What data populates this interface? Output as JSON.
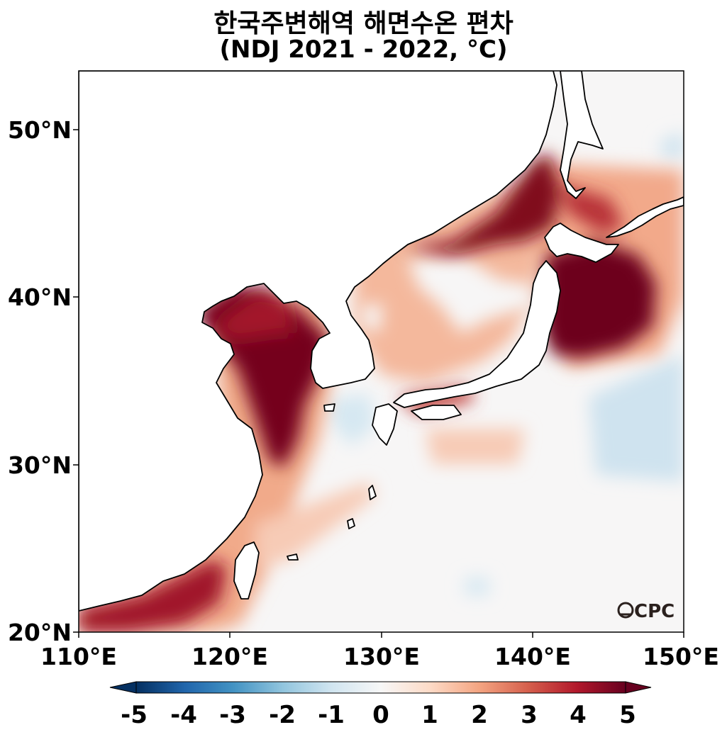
{
  "title": {
    "line1": "한국주변해역 해면수온 편차",
    "line2": "(NDJ 2021 - 2022, °C)"
  },
  "map": {
    "lon_range": [
      110,
      150
    ],
    "lat_range": [
      20,
      53.5
    ],
    "x_ticks": [
      "110°E",
      "120°E",
      "130°E",
      "140°E",
      "150°E"
    ],
    "y_ticks": [
      "50°N",
      "40°N",
      "30°N",
      "20°N"
    ],
    "logo": "OCPC"
  },
  "colorbar": {
    "labels": [
      "-5",
      "-4",
      "-3",
      "-2",
      "-1",
      "0",
      "1",
      "2",
      "3",
      "4",
      "5"
    ],
    "colormap": "RdBu_r",
    "range": [
      -5,
      5
    ],
    "extend": "both"
  },
  "colors": {
    "strong_warm": "#67001f",
    "warm": "#b2182b",
    "mid_warm": "#d6604d",
    "light_warm": "#f4a582",
    "pale_warm": "#fddbc7",
    "neutral": "#f7f7f7",
    "pale_cool": "#d1e5f0",
    "light_cool": "#92c5de",
    "cool": "#4393c3",
    "strong_cool": "#053061"
  }
}
